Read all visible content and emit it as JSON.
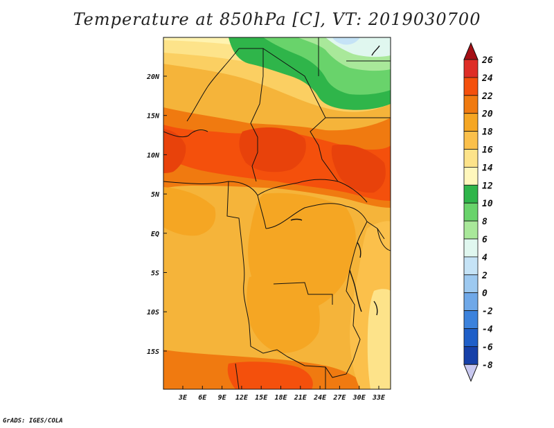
{
  "title": "Temperature at 850hPa [C], VT: 2019030700",
  "footer": "GrADS: IGES/COLA",
  "map": {
    "lon_range": [
      0,
      35
    ],
    "lat_range": [
      -20,
      25
    ],
    "y_ticks": [
      "20N",
      "15N",
      "10N",
      "5N",
      "EQ",
      "5S",
      "10S",
      "15S"
    ],
    "x_ticks": [
      "3E",
      "6E",
      "9E",
      "12E",
      "15E",
      "18E",
      "21E",
      "24E",
      "27E",
      "30E",
      "33E"
    ]
  },
  "colorbar": {
    "labels": [
      "26",
      "24",
      "22",
      "20",
      "18",
      "16",
      "14",
      "12",
      "10",
      "8",
      "6",
      "4",
      "2",
      "0",
      "-2",
      "-4",
      "-6",
      "-8"
    ],
    "colors": [
      "#a50f15",
      "#de2d26",
      "#f4500c",
      "#f07a10",
      "#f5a623",
      "#fbc04b",
      "#fde38a",
      "#fff7bc",
      "#2fb54a",
      "#69d36b",
      "#a9e89a",
      "#e0f7ef",
      "#c5e3f6",
      "#9dc9f0",
      "#6fa8e8",
      "#3c82dc",
      "#1f5fc8",
      "#1640a8",
      "#0d2278",
      "#c8c8f0"
    ]
  }
}
